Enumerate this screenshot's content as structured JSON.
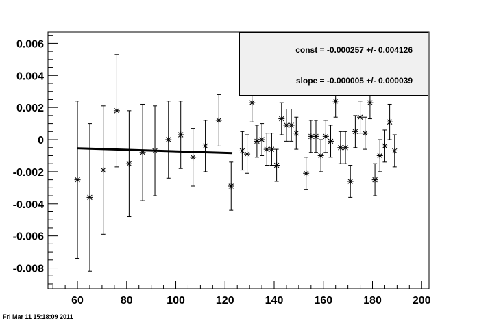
{
  "timestamp": "Fri Mar 11 15:18:09 2011",
  "stats": {
    "const_text": "const = -0.000257 +/- 0.004126",
    "slope_text": "slope = -0.000005 +/- 0.000039"
  },
  "colors": {
    "axes": "#000000",
    "points": "#000000",
    "fit": "#000000",
    "stats_fill": "#f0f0f0"
  },
  "chart_data": {
    "type": "scatter",
    "title": "",
    "xlabel": "",
    "ylabel": "",
    "xlim": [
      48,
      203
    ],
    "ylim": [
      -0.0093,
      0.0067
    ],
    "grid": false,
    "legend": "none",
    "xticks": [
      60,
      80,
      100,
      120,
      140,
      160,
      180,
      200
    ],
    "xtick_labels": [
      "60",
      "80",
      "100",
      "120",
      "140",
      "160",
      "180",
      "200"
    ],
    "yticks": [
      0.006,
      0.004,
      0.002,
      0,
      -0.002,
      -0.004,
      -0.006,
      -0.008
    ],
    "ytick_labels": [
      "0.006",
      "0.004",
      "0.002",
      "0",
      "-0.002",
      "-0.004",
      "-0.006",
      "-0.008"
    ],
    "points": [
      {
        "x": 60,
        "y": -0.0025,
        "err": 0.0049
      },
      {
        "x": 65,
        "y": -0.0036,
        "err": 0.0046
      },
      {
        "x": 70.5,
        "y": -0.0019,
        "err": 0.004
      },
      {
        "x": 76,
        "y": 0.0018,
        "err": 0.0035
      },
      {
        "x": 81,
        "y": -0.0015,
        "err": 0.0033
      },
      {
        "x": 86.5,
        "y": -0.0008,
        "err": 0.003
      },
      {
        "x": 91.5,
        "y": -0.0007,
        "err": 0.0028
      },
      {
        "x": 97,
        "y": 0.0,
        "err": 0.0024
      },
      {
        "x": 102,
        "y": 0.0003,
        "err": 0.0021
      },
      {
        "x": 107,
        "y": -0.0011,
        "err": 0.0018
      },
      {
        "x": 112,
        "y": -0.0004,
        "err": 0.0016
      },
      {
        "x": 117.5,
        "y": 0.0012,
        "err": 0.0016
      },
      {
        "x": 122.5,
        "y": -0.0029,
        "err": 0.0015
      },
      {
        "x": 127,
        "y": -0.0007,
        "err": 0.0012
      },
      {
        "x": 129,
        "y": -0.0009,
        "err": 0.0012
      },
      {
        "x": 131,
        "y": 0.0023,
        "err": 0.0012
      },
      {
        "x": 133,
        "y": -0.0001,
        "err": 0.001
      },
      {
        "x": 135,
        "y": 0.0,
        "err": 0.001
      },
      {
        "x": 137,
        "y": -0.0006,
        "err": 0.001
      },
      {
        "x": 139,
        "y": -0.0006,
        "err": 0.001
      },
      {
        "x": 141,
        "y": -0.0016,
        "err": 0.001
      },
      {
        "x": 143,
        "y": 0.0013,
        "err": 0.001
      },
      {
        "x": 145,
        "y": 0.0009,
        "err": 0.001
      },
      {
        "x": 147,
        "y": 0.0009,
        "err": 0.001
      },
      {
        "x": 149,
        "y": 0.0004,
        "err": 0.001
      },
      {
        "x": 153,
        "y": -0.0021,
        "err": 0.001
      },
      {
        "x": 155,
        "y": 0.0002,
        "err": 0.001
      },
      {
        "x": 157,
        "y": 0.0002,
        "err": 0.001
      },
      {
        "x": 159,
        "y": -0.001,
        "err": 0.001
      },
      {
        "x": 161,
        "y": 0.0002,
        "err": 0.001
      },
      {
        "x": 163,
        "y": -0.0001,
        "err": 0.001
      },
      {
        "x": 165,
        "y": 0.0024,
        "err": 0.001
      },
      {
        "x": 167,
        "y": -0.0005,
        "err": 0.001
      },
      {
        "x": 169,
        "y": -0.0005,
        "err": 0.001
      },
      {
        "x": 171,
        "y": -0.0026,
        "err": 0.001
      },
      {
        "x": 173,
        "y": 0.0005,
        "err": 0.001
      },
      {
        "x": 175,
        "y": 0.0014,
        "err": 0.001
      },
      {
        "x": 177,
        "y": 0.0004,
        "err": 0.001
      },
      {
        "x": 179,
        "y": 0.0023,
        "err": 0.001
      },
      {
        "x": 181,
        "y": -0.0025,
        "err": 0.001
      },
      {
        "x": 183,
        "y": -0.001,
        "err": 0.001
      },
      {
        "x": 185,
        "y": -0.0004,
        "err": 0.001
      },
      {
        "x": 187,
        "y": 0.0011,
        "err": 0.0011
      },
      {
        "x": 189,
        "y": -0.0007,
        "err": 0.001
      }
    ],
    "fit": {
      "x": [
        60,
        123
      ],
      "y": [
        -0.00054,
        -0.00084
      ]
    }
  }
}
